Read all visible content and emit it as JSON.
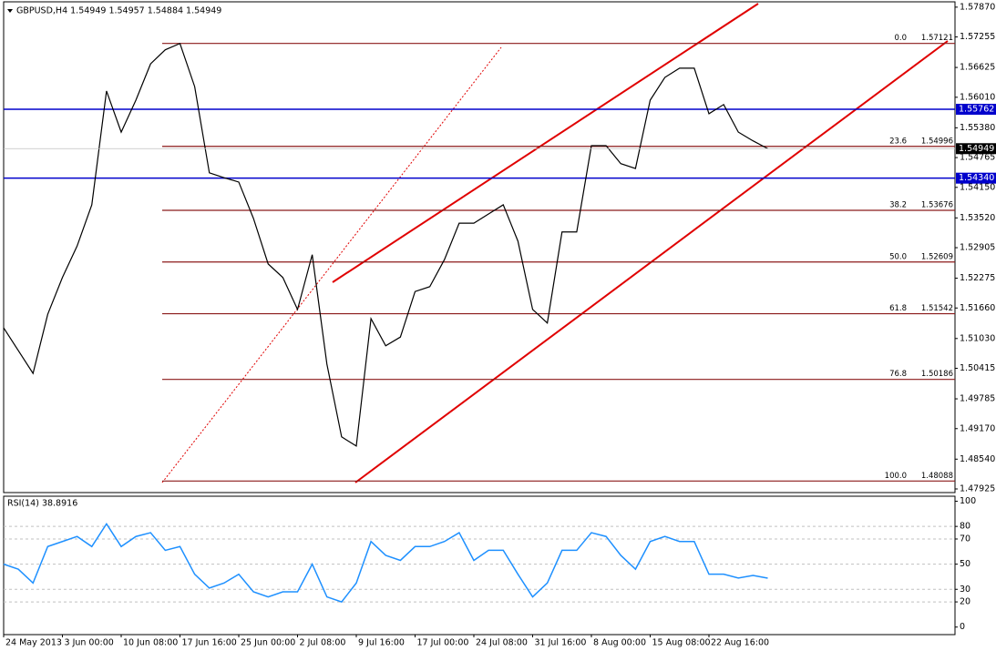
{
  "chart_data": [
    {
      "type": "line",
      "title": "GBPUSD,H4 1.54949 1.54957 1.54884 1.54949",
      "color": "#000000",
      "categories": [
        "24 May 2013",
        null,
        null,
        null,
        "3 Jun 00:00",
        null,
        null,
        null,
        "10 Jun 08:00",
        null,
        null,
        null,
        "17 Jun 16:00",
        null,
        null,
        null,
        "25 Jun 00:00",
        null,
        null,
        null,
        "2 Jul 08:00",
        null,
        null,
        null,
        "9 Jul 16:00",
        null,
        null,
        null,
        "17 Jul 00:00",
        null,
        null,
        null,
        "24 Jul 08:00",
        null,
        null,
        null,
        "31 Jul 16:00",
        null,
        null,
        null,
        "8 Aug 00:00",
        null,
        null,
        null,
        "15 Aug 08:00",
        null,
        null,
        null,
        "22 Aug 16:00",
        null,
        null,
        null,
        null
      ],
      "values": [
        1.5125,
        1.5078,
        1.5031,
        1.5153,
        1.5229,
        1.5294,
        1.5379,
        1.5614,
        1.5529,
        1.5595,
        1.567,
        1.5699,
        1.5712,
        1.5623,
        1.5445,
        1.5435,
        1.5426,
        1.5351,
        1.5257,
        1.5229,
        1.5163,
        1.5276,
        1.505,
        1.49,
        1.4881,
        1.5144,
        1.5088,
        1.5106,
        1.52,
        1.521,
        1.5266,
        1.5341,
        1.5341,
        1.536,
        1.5379,
        1.5304,
        1.5163,
        1.5135,
        1.5323,
        1.5323,
        1.5501,
        1.5501,
        1.5464,
        1.5454,
        1.5595,
        1.5642,
        1.5661,
        1.5661,
        1.5567,
        1.5586,
        1.5529,
        1.5511,
        1.5495
      ],
      "ylim": [
        1.4785,
        1.5798
      ],
      "yticks": [
        {
          "value": 1.5787,
          "label": "1.57870"
        },
        1.57255,
        1.56625,
        {
          "value": 1.5601,
          "label": "1.56010"
        },
        {
          "value": 1.5538,
          "label": "1.55380"
        },
        1.54765,
        {
          "value": 1.5415,
          "label": "1.54150"
        },
        {
          "value": 1.5352,
          "label": "1.53520"
        },
        1.52905,
        1.52275,
        {
          "value": 1.5166,
          "label": "1.51660"
        },
        {
          "value": 1.5103,
          "label": "1.51030"
        },
        1.50415,
        1.49785,
        {
          "value": 1.4917,
          "label": "1.49170"
        },
        {
          "value": 1.4854,
          "label": "1.48540"
        },
        1.47925
      ],
      "hlines": [
        1.55762,
        {
          "value": 1.5434,
          "label": "1.54340"
        }
      ],
      "hline_color": "#0000cc",
      "current_price": 1.54949,
      "fibonacci": [
        {
          "level": "0.0",
          "price": 1.57121
        },
        {
          "level": "23.6",
          "price": 1.54996
        },
        {
          "level": "38.2",
          "price": 1.53676
        },
        {
          "level": "50.0",
          "price": 1.52609
        },
        {
          "level": "61.8",
          "price": 1.51542
        },
        {
          "level": "76.8",
          "price": 1.50186
        },
        {
          "level": "100.0",
          "price": 1.48088
        }
      ],
      "fib_color": "#8b1a1a"
    },
    {
      "type": "line",
      "title": "RSI(14) 38.8916",
      "color": "#1e90ff",
      "values": [
        50,
        46,
        35,
        64,
        68,
        72,
        64,
        82,
        64,
        72,
        75,
        61,
        64,
        42,
        31,
        35,
        42,
        28,
        24,
        28,
        28,
        50,
        24,
        20,
        35,
        68,
        57,
        53,
        64,
        64,
        68,
        75,
        53,
        61,
        61,
        42,
        24,
        35,
        61,
        61,
        75,
        72,
        57,
        46,
        68,
        72,
        68,
        68,
        42,
        42,
        39,
        41,
        38.8916
      ],
      "ylim": [
        -6,
        104
      ],
      "yticks": [
        0,
        20,
        30,
        50,
        70,
        80,
        100
      ],
      "grid_levels": [
        20,
        30,
        50,
        70,
        80
      ]
    }
  ]
}
